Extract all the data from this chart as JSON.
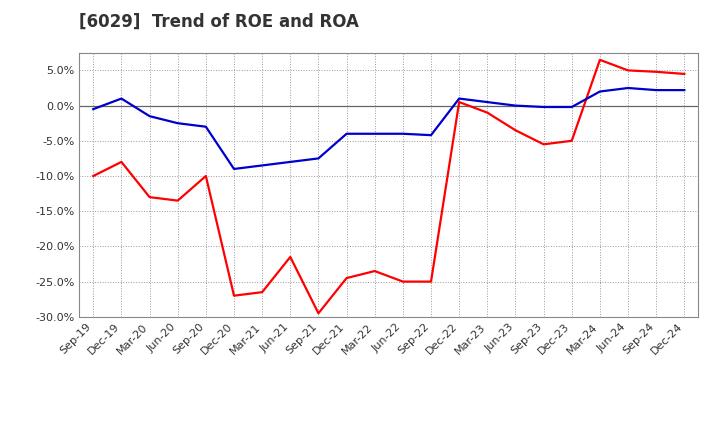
{
  "title": "[6029]  Trend of ROE and ROA",
  "x_labels": [
    "Sep-19",
    "Dec-19",
    "Mar-20",
    "Jun-20",
    "Sep-20",
    "Dec-20",
    "Mar-21",
    "Jun-21",
    "Sep-21",
    "Dec-21",
    "Mar-22",
    "Jun-22",
    "Sep-22",
    "Dec-22",
    "Mar-23",
    "Jun-23",
    "Sep-23",
    "Dec-23",
    "Mar-24",
    "Jun-24",
    "Sep-24",
    "Dec-24"
  ],
  "roe": [
    -10.0,
    -8.0,
    -13.0,
    -13.5,
    -10.0,
    -27.0,
    -26.5,
    -21.5,
    -29.5,
    -24.5,
    -23.5,
    -25.0,
    -25.0,
    0.5,
    -1.0,
    -3.5,
    -5.5,
    -5.0,
    6.5,
    5.0,
    4.8,
    4.5
  ],
  "roa": [
    -0.5,
    1.0,
    -1.5,
    -2.5,
    -3.0,
    -9.0,
    -8.5,
    -8.0,
    -7.5,
    -4.0,
    -4.0,
    -4.0,
    -4.2,
    1.0,
    0.5,
    0.0,
    -0.2,
    -0.2,
    2.0,
    2.5,
    2.2,
    2.2
  ],
  "ylim": [
    -30.0,
    7.5
  ],
  "yticks": [
    -30.0,
    -25.0,
    -20.0,
    -15.0,
    -10.0,
    -5.0,
    0.0,
    5.0
  ],
  "roe_color": "#ff0000",
  "roa_color": "#0000cc",
  "bg_color": "#ffffff",
  "plot_bg_color": "#ffffff",
  "grid_color": "#999999",
  "title_fontsize": 12,
  "tick_fontsize": 8,
  "legend_fontsize": 10,
  "line_width": 1.6
}
